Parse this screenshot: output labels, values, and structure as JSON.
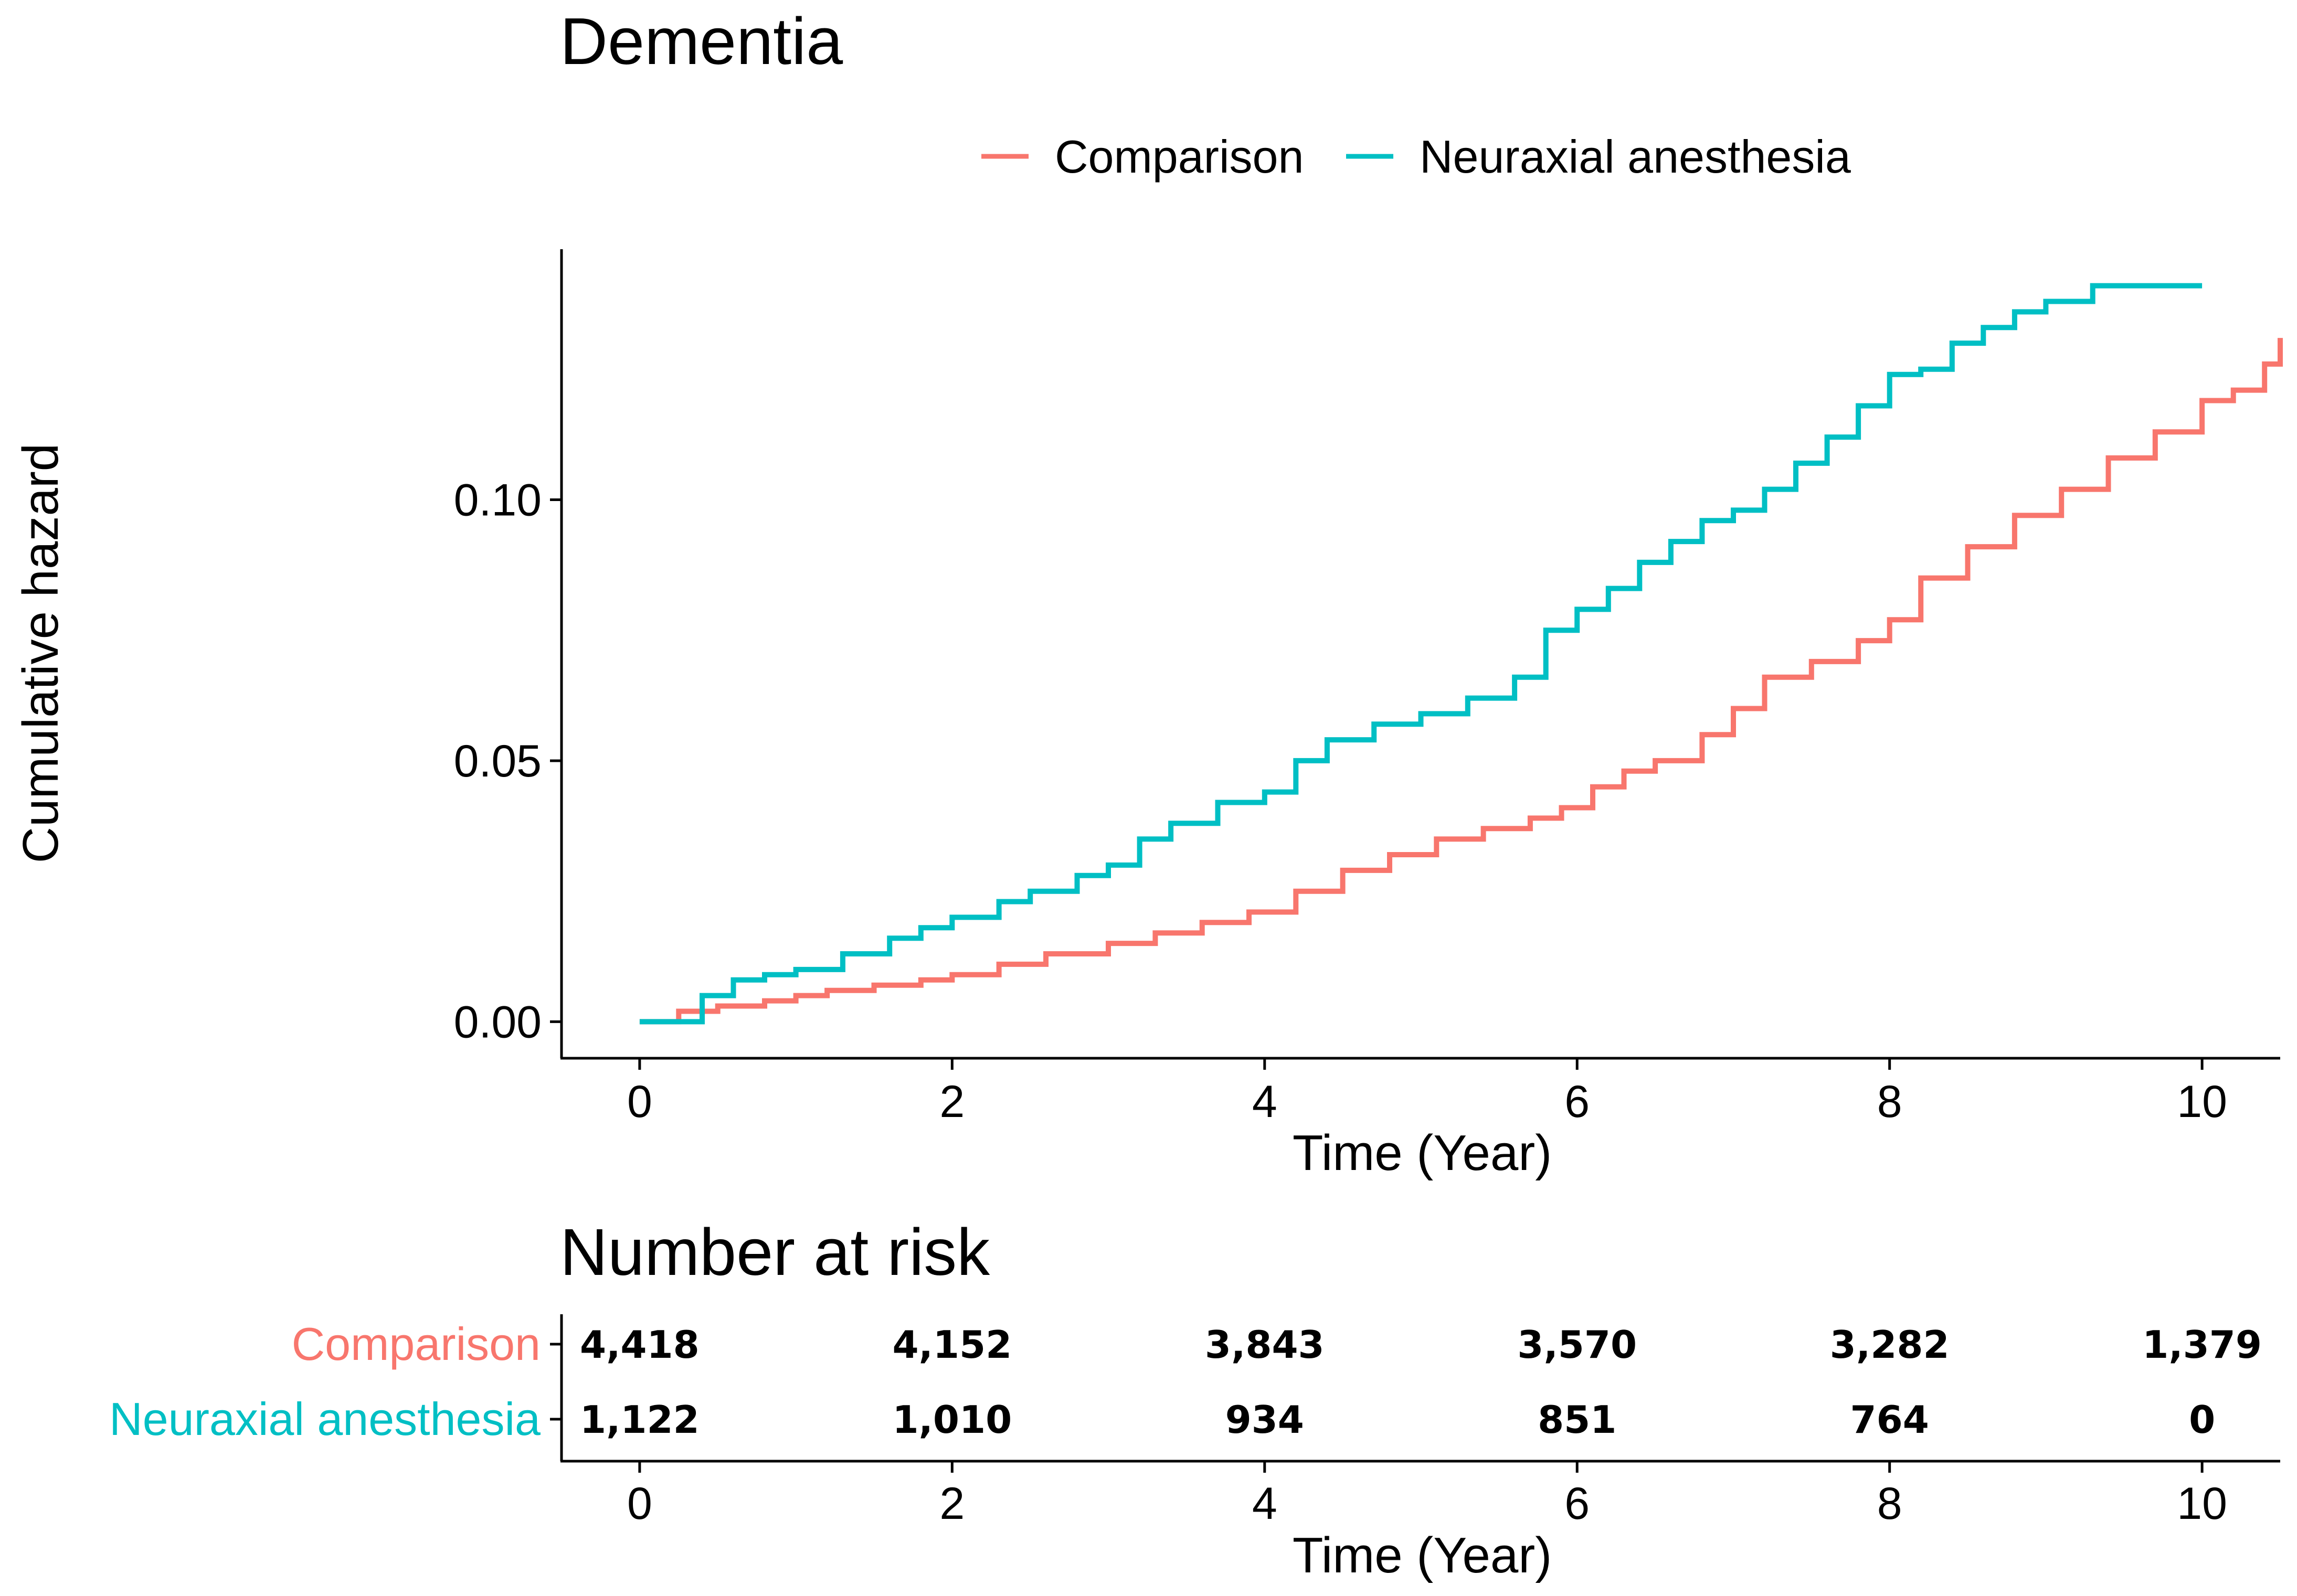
{
  "chart_data": [
    {
      "type": "line",
      "title": "Dementia",
      "xlabel": "Time (Year)",
      "ylabel": "Cumulative hazard",
      "xlim": [
        -0.5,
        10.5
      ],
      "ylim": [
        -0.007,
        0.148
      ],
      "xticks": [
        0,
        2,
        4,
        6,
        8,
        10
      ],
      "xtick_labels": [
        "0",
        "2",
        "4",
        "6",
        "8",
        "10"
      ],
      "yticks": [
        0.0,
        0.05,
        0.1
      ],
      "ytick_labels": [
        "0.00",
        "0.05",
        "0.10"
      ],
      "legend_position": "top",
      "series": [
        {
          "name": "Comparison",
          "color": "#F8766D",
          "x": [
            0,
            0.25,
            0.5,
            0.8,
            1.0,
            1.2,
            1.5,
            1.8,
            2.0,
            2.3,
            2.6,
            3.0,
            3.3,
            3.6,
            3.9,
            4.2,
            4.5,
            4.8,
            5.1,
            5.4,
            5.7,
            5.9,
            6.1,
            6.3,
            6.5,
            6.8,
            7.0,
            7.2,
            7.5,
            7.8,
            8.0,
            8.2,
            8.5,
            8.8,
            9.1,
            9.4,
            9.7,
            10.0,
            10.2,
            10.4,
            10.5
          ],
          "y": [
            0,
            0.002,
            0.003,
            0.004,
            0.005,
            0.006,
            0.007,
            0.008,
            0.009,
            0.011,
            0.013,
            0.015,
            0.017,
            0.019,
            0.021,
            0.025,
            0.029,
            0.032,
            0.035,
            0.037,
            0.039,
            0.041,
            0.045,
            0.048,
            0.05,
            0.055,
            0.06,
            0.066,
            0.069,
            0.073,
            0.077,
            0.085,
            0.091,
            0.097,
            0.102,
            0.108,
            0.113,
            0.119,
            0.121,
            0.126,
            0.131
          ]
        },
        {
          "name": "Neuraxial anesthesia",
          "color": "#00BFC4",
          "x": [
            0,
            0.25,
            0.4,
            0.6,
            0.8,
            1.0,
            1.3,
            1.6,
            1.8,
            2.0,
            2.3,
            2.5,
            2.8,
            3.0,
            3.2,
            3.4,
            3.7,
            4.0,
            4.2,
            4.4,
            4.7,
            5.0,
            5.3,
            5.6,
            5.8,
            6.0,
            6.2,
            6.4,
            6.6,
            6.8,
            7.0,
            7.2,
            7.4,
            7.6,
            7.8,
            8.0,
            8.2,
            8.4,
            8.6,
            8.8,
            9.0,
            9.3,
            9.6,
            10.0
          ],
          "y": [
            0,
            0,
            0.005,
            0.008,
            0.009,
            0.01,
            0.013,
            0.016,
            0.018,
            0.02,
            0.023,
            0.025,
            0.028,
            0.03,
            0.035,
            0.038,
            0.042,
            0.044,
            0.05,
            0.054,
            0.057,
            0.059,
            0.062,
            0.066,
            0.075,
            0.079,
            0.083,
            0.088,
            0.092,
            0.096,
            0.098,
            0.102,
            0.107,
            0.112,
            0.118,
            0.124,
            0.125,
            0.13,
            0.133,
            0.136,
            0.138,
            0.141,
            0.141,
            0.141
          ]
        }
      ]
    },
    {
      "type": "table",
      "title": "Number at risk",
      "xlabel": "Time (Year)",
      "xticks": [
        0,
        2,
        4,
        6,
        8,
        10
      ],
      "xtick_labels": [
        "0",
        "2",
        "4",
        "6",
        "8",
        "10"
      ],
      "rows": [
        {
          "name": "Comparison",
          "color": "#F8766D",
          "values": [
            "4,418",
            "4,152",
            "3,843",
            "3,570",
            "3,282",
            "1,379"
          ]
        },
        {
          "name": "Neuraxial anesthesia",
          "color": "#00BFC4",
          "values": [
            "1,122",
            "1,010",
            "934",
            "851",
            "764",
            "0"
          ]
        }
      ]
    }
  ]
}
